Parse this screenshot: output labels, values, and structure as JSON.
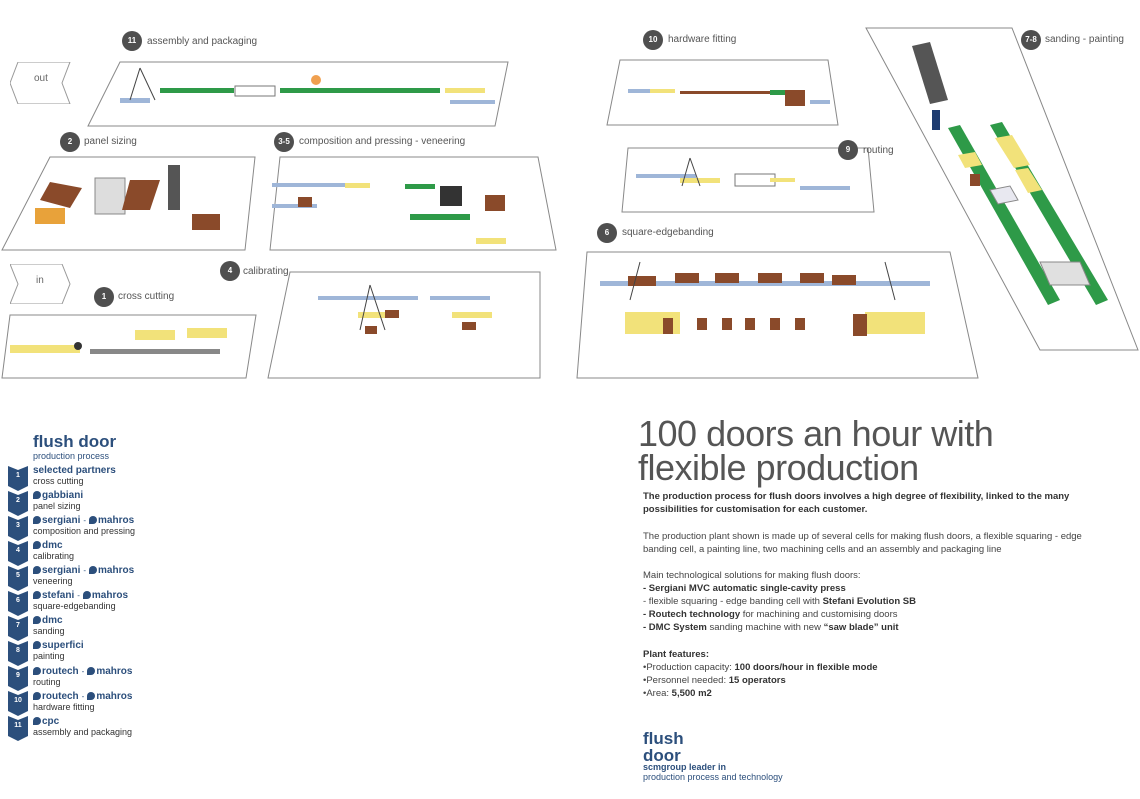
{
  "cells": {
    "c11": {
      "badge": "11",
      "label": "assembly and packaging"
    },
    "c2": {
      "badge": "2",
      "label": "panel sizing"
    },
    "c35": {
      "badge": "3-5",
      "label": "composition and pressing - veneering"
    },
    "c1": {
      "badge": "1",
      "label": "cross cutting"
    },
    "c4": {
      "badge": "4",
      "label": "calibrating"
    },
    "c10": {
      "badge": "10",
      "label": "hardware fitting"
    },
    "c9": {
      "badge": "9",
      "label": "routing"
    },
    "c6": {
      "badge": "6",
      "label": "square-edgebanding"
    },
    "c78": {
      "badge": "7-8",
      "label": "sanding - painting"
    }
  },
  "arrows": {
    "out": "out",
    "in": "in"
  },
  "legend": {
    "title": "flush door",
    "subtitle": "production process",
    "items": [
      {
        "num": "",
        "partners": "selected partners",
        "step": "cross cutting"
      },
      {
        "num": "1",
        "partners": "",
        "step": ""
      },
      {
        "num": "2",
        "partners": "gabbiani",
        "step": "panel sizing"
      },
      {
        "num": "3",
        "partners": "sergiani",
        "partners2": "mahros",
        "step": "composition and pressing"
      },
      {
        "num": "4",
        "partners": "dmc",
        "step": "calibrating"
      },
      {
        "num": "5",
        "partners": "sergiani",
        "partners2": "mahros",
        "step": "veneering"
      },
      {
        "num": "6",
        "partners": "stefani",
        "partners2": "mahros",
        "step": "square-edgebanding"
      },
      {
        "num": "7",
        "partners": "dmc",
        "step": "sanding"
      },
      {
        "num": "8",
        "partners": "superfici",
        "step": "painting"
      },
      {
        "num": "9",
        "partners": "routech",
        "partners2": "mahros",
        "step": "routing"
      },
      {
        "num": "10",
        "partners": "routech",
        "partners2": "mahros",
        "step": "hardware fitting"
      },
      {
        "num": "11",
        "partners": "cpc",
        "step": "assembly and packaging"
      }
    ]
  },
  "headline": {
    "line1": "100 doors an hour with",
    "line2": "flexible production"
  },
  "intro_bold": "The production process for flush doors involves a high degree of flexibility, linked to the many possibilities for customisation for each customer.",
  "para2": "The production plant shown is made up of several cells for making flush doors, a flexible squaring - edge banding cell, a painting line, two machining cells and an assembly and packaging line",
  "solutions": {
    "intro": "Main technological solutions for making flush doors:",
    "s1_bold": "- Sergiani MVC automatic single-cavity press",
    "s2_pre": "- flexible squaring - edge banding cell with ",
    "s2_bold": "Stefani Evolution SB",
    "s3_bold": "- Routech technology",
    "s3_post": " for machining and customising doors",
    "s4_bold": "- DMC System",
    "s4_mid": " sanding machine with new ",
    "s4_bold2": "“saw blade” unit"
  },
  "plant": {
    "title": "Plant features:",
    "f1_pre": "•Production capacity: ",
    "f1_bold": "100 doors/hour in flexible mode",
    "f2_pre": "•Personnel needed: ",
    "f2_bold": "15 operators",
    "f3_pre": "•Area: ",
    "f3_bold": "5,500 m2"
  },
  "footer": {
    "logo1": "flush",
    "logo2": "door",
    "sub1": "scmgroup leader in",
    "sub2": "production process and technology"
  },
  "colors": {
    "accent": "#2c4f7c",
    "badge": "#4f4f4f",
    "green": "#2e9a48",
    "yellow": "#f2e27a",
    "wood": "#8a4a2a"
  }
}
